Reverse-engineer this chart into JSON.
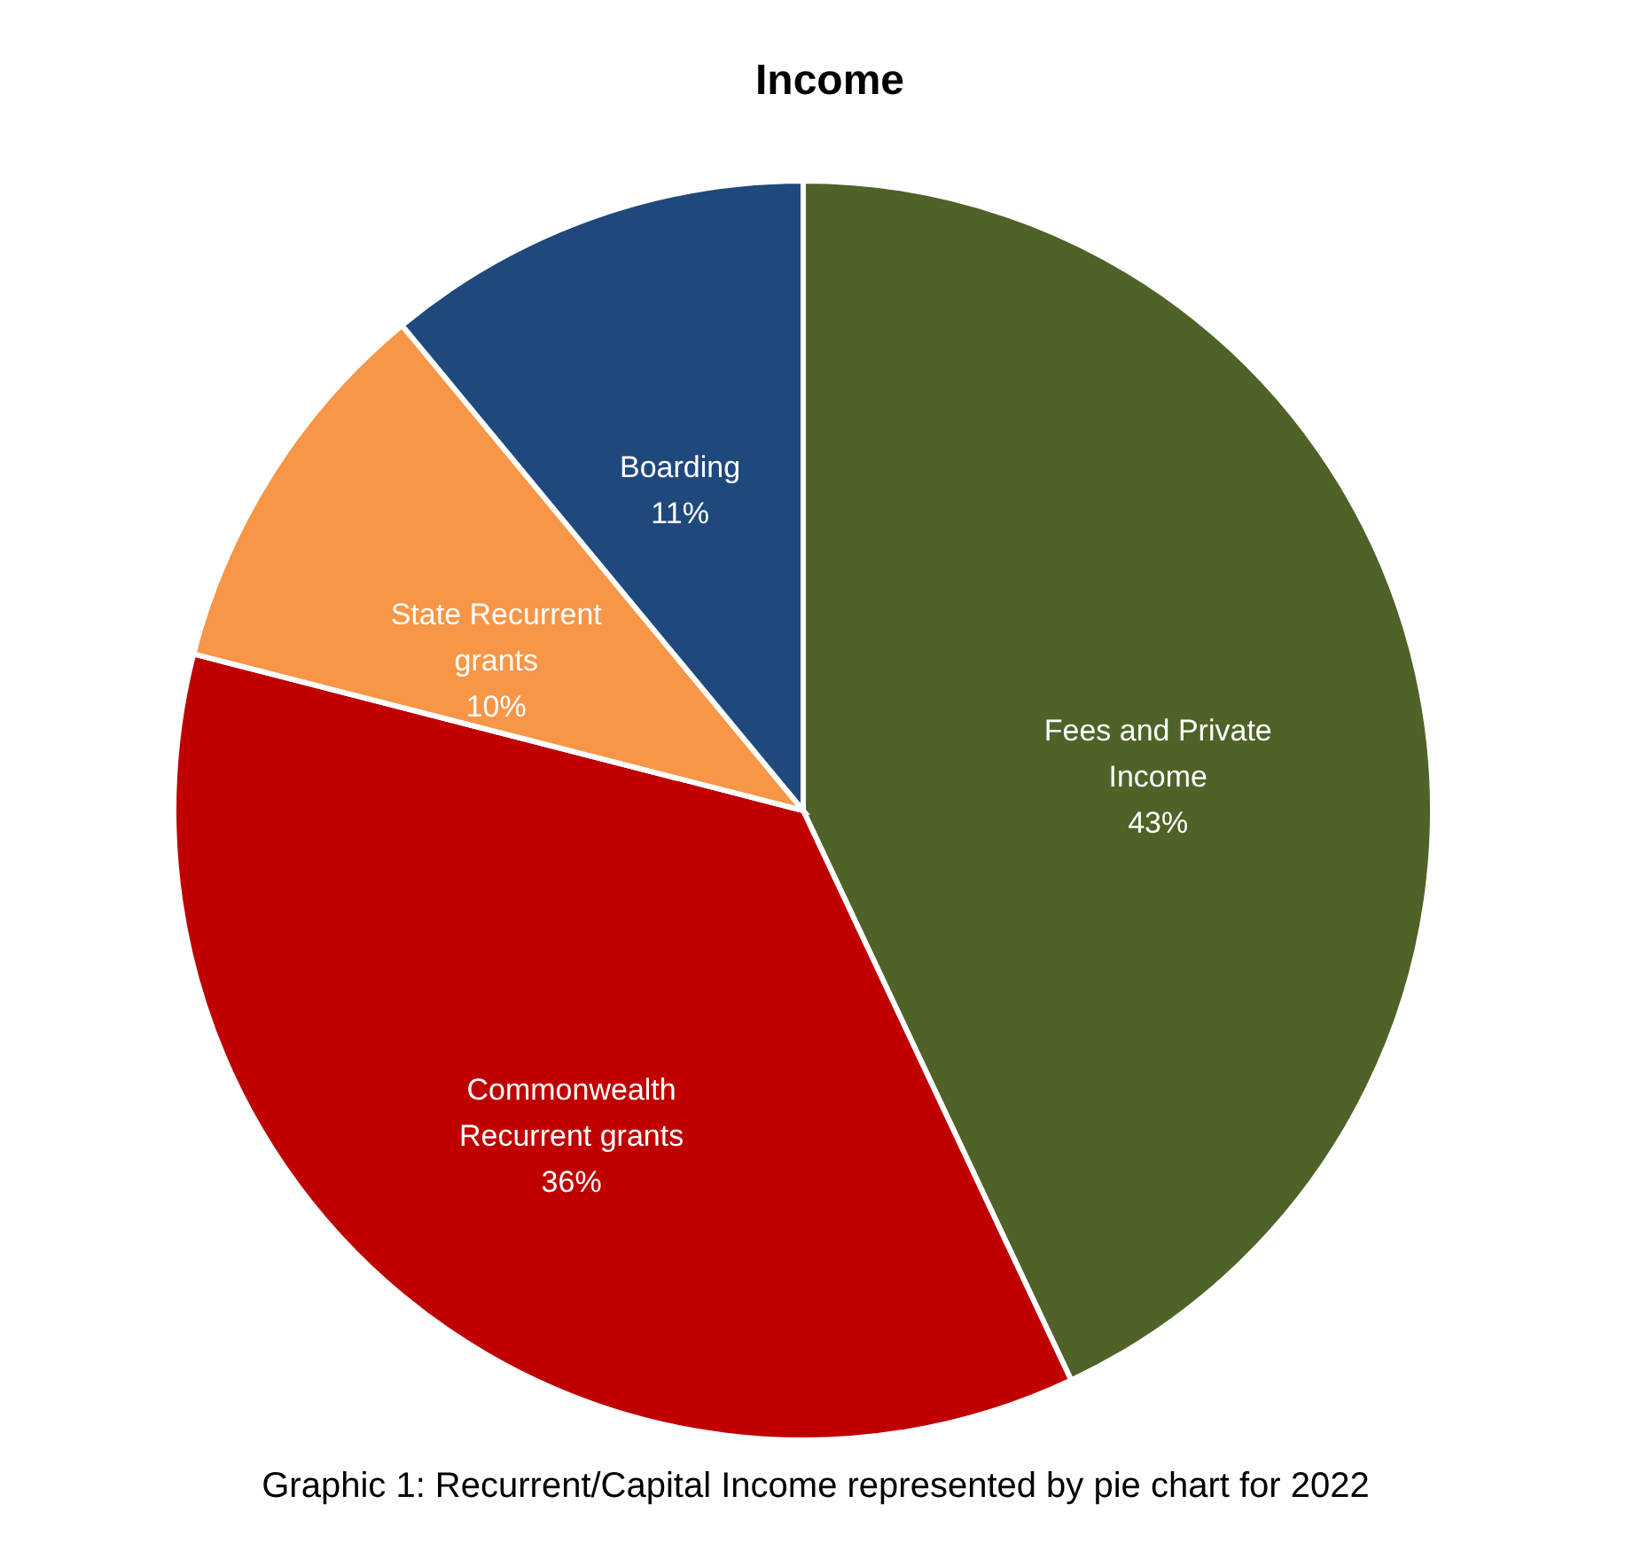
{
  "chart_data": {
    "type": "pie",
    "title": "Income",
    "categories": [
      "Fees and Private Income",
      "Commonwealth Recurrent grants",
      "State Recurrent grants",
      "Boarding"
    ],
    "values": [
      43,
      36,
      10,
      11
    ],
    "value_labels": [
      "43%",
      "36%",
      "10%",
      "11%"
    ],
    "colors": [
      "#4f6228",
      "#c00000",
      "#f79646",
      "#1f497d"
    ],
    "annotations": [
      "Graphic 1: Recurrent/Capital Income represented by pie chart for 2022"
    ]
  }
}
